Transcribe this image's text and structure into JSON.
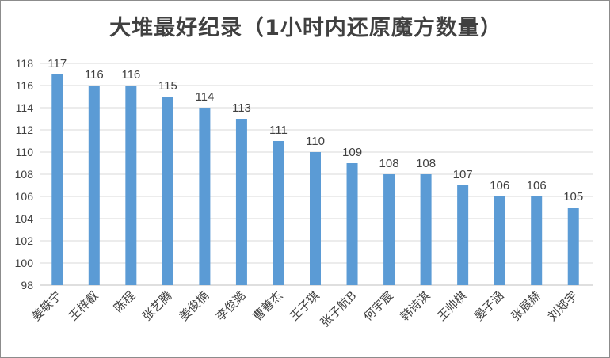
{
  "chart_data": {
    "type": "bar",
    "title": "大堆最好纪录（1小时内还原魔方数量）",
    "xlabel": "",
    "ylabel": "",
    "categories": [
      "姜轶宁",
      "王梓叡",
      "陈程",
      "张艺腾",
      "姜俊楠",
      "李俊澔",
      "曹善杰",
      "王子琪",
      "张子航B",
      "何宇宸",
      "韩诗淇",
      "王帅棋",
      "晏子涵",
      "张展赫",
      "刘郑宇"
    ],
    "values": [
      117,
      116,
      116,
      115,
      114,
      113,
      111,
      110,
      109,
      108,
      108,
      107,
      106,
      106,
      105
    ],
    "ylim": [
      98,
      118
    ],
    "yticks": [
      98,
      100,
      102,
      104,
      106,
      108,
      110,
      112,
      114,
      116,
      118
    ],
    "grid": true,
    "bar_color": "#5b9bd5",
    "data_labels": true
  }
}
